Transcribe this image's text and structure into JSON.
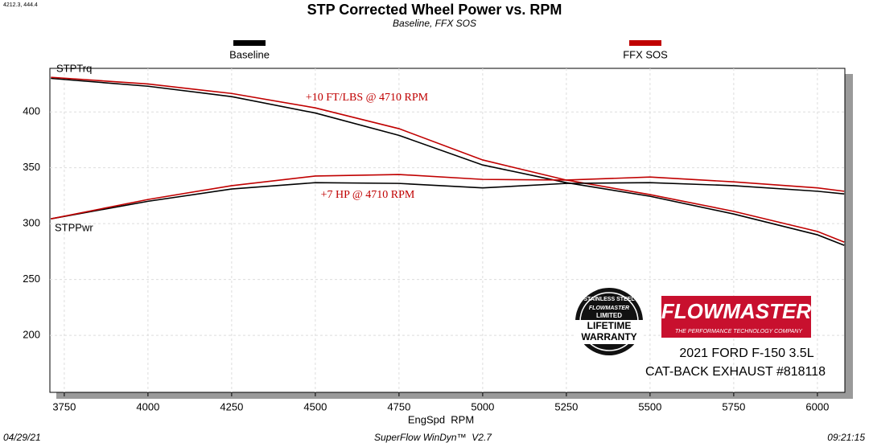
{
  "chart_data": {
    "type": "line",
    "corner_readout": "4212.3, 444.4",
    "title": "STP Corrected Wheel Power vs. RPM",
    "subtitle": "Baseline, FFX SOS",
    "x_label": "EngSpd  RPM",
    "curve_labels": [
      "STPTrq",
      "STPPwr"
    ],
    "annotations": [
      "+10 FT/LBS @ 4710 RPM",
      "+7 HP @ 4710 RPM"
    ],
    "x": [
      3710,
      4000,
      4250,
      4500,
      4750,
      5000,
      5250,
      5500,
      5750,
      6000,
      6080
    ],
    "series": [
      {
        "name": "Baseline",
        "color": "#000000",
        "values": [
          430,
          423,
          413.7,
          399,
          379,
          352.5,
          336.7,
          324.5,
          308.6,
          290,
          280.6
        ]
      },
      {
        "name": "FFX SOS",
        "color": "#c00000",
        "values": [
          431,
          425,
          416.5,
          403.6,
          385,
          357,
          339,
          326,
          311,
          293,
          283.5
        ]
      },
      {
        "name": "Baseline",
        "color": "#000000",
        "values": [
          304.3,
          320,
          331,
          336.7,
          336,
          332,
          336,
          336.7,
          334,
          329,
          326.6
        ]
      },
      {
        "name": "FFX SOS",
        "color": "#c00000",
        "values": [
          304.3,
          321.6,
          334,
          342.6,
          344,
          339.6,
          339,
          341.7,
          337.4,
          332,
          329
        ]
      }
    ],
    "xlim": [
      3707,
      6082
    ],
    "xticks": [
      3750,
      4000,
      4250,
      4500,
      4750,
      5000,
      5250,
      5500,
      5750,
      6000
    ],
    "ylim": [
      149,
      439
    ],
    "yticks": [
      200,
      250,
      300,
      350,
      400
    ],
    "grid": true,
    "footer": {
      "date": "04/29/21",
      "software": "SuperFlow WinDyn™  V2.7",
      "time": "09:21:15"
    },
    "logo": {
      "brand": "FLOWMASTER",
      "tagline": "THE PERFORMANCE TECHNOLOGY COMPANY",
      "vehicle": "2021 FORD F-150 3.5L",
      "product": "CAT-BACK EXHAUST #818118",
      "badge": [
        "STAINLESS STEEL",
        "FLOWMASTER",
        "LIMITED",
        "LIFETIME",
        "WARRANTY"
      ]
    }
  }
}
